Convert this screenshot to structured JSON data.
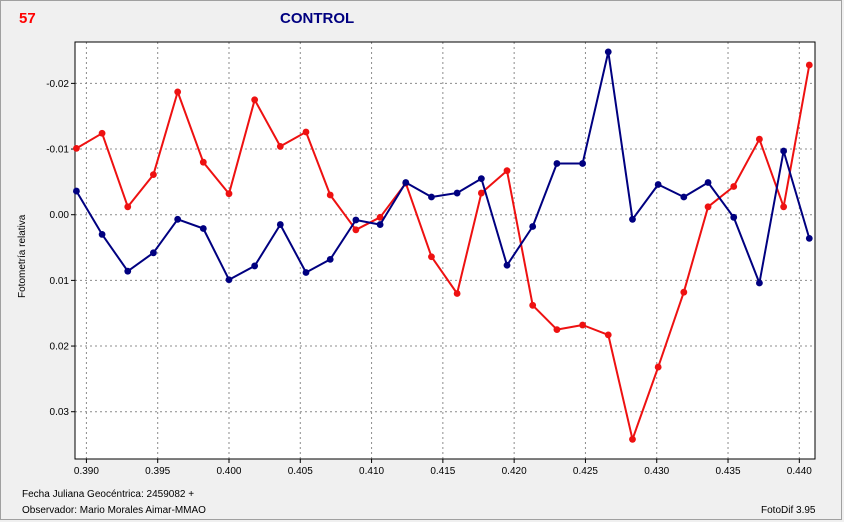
{
  "header": {
    "number": "57",
    "title": "CONTROL"
  },
  "footer": {
    "line1": "Fecha Juliana Geocéntrica: 2459082 +",
    "line2": "Observador: Mario Morales Aimar-MMAO",
    "software": "FotoDif 3.95"
  },
  "colors": {
    "series_red": "#ee1111",
    "series_blue": "#000080",
    "number": "#ff0000",
    "title": "#000080"
  },
  "chart_data": {
    "type": "line",
    "title": "CONTROL",
    "xlabel": "",
    "ylabel": "Fotometría relativa",
    "xlim": [
      0.3892,
      0.4411
    ],
    "ylim": [
      0.0372,
      -0.0263
    ],
    "y_inverted": true,
    "grid": true,
    "x_ticks": [
      0.39,
      0.395,
      0.4,
      0.405,
      0.41,
      0.415,
      0.42,
      0.425,
      0.43,
      0.435,
      0.44
    ],
    "x_tick_labels": [
      "0.390",
      "0.395",
      "0.400",
      "0.405",
      "0.410",
      "0.415",
      "0.420",
      "0.425",
      "0.430",
      "0.435",
      "0.440"
    ],
    "y_ticks": [
      -0.02,
      -0.01,
      0.0,
      0.01,
      0.02,
      0.03
    ],
    "y_tick_labels": [
      "-0.02",
      "-0.01",
      "0.00",
      "0.01",
      "0.02",
      "0.03"
    ],
    "x": [
      0.3893,
      0.3911,
      0.3929,
      0.3947,
      0.3964,
      0.3982,
      0.4,
      0.4018,
      0.4036,
      0.4054,
      0.4071,
      0.4089,
      0.4106,
      0.4124,
      0.4142,
      0.416,
      0.4177,
      0.4195,
      0.4213,
      0.423,
      0.4248,
      0.4266,
      0.4283,
      0.4301,
      0.4319,
      0.4336,
      0.4354,
      0.4372,
      0.4389,
      0.4407
    ],
    "series": [
      {
        "color": "#ee1111",
        "values": [
          -0.0101,
          -0.0124,
          -0.0012,
          -0.0061,
          -0.0187,
          -0.008,
          -0.0032,
          -0.0175,
          -0.0104,
          -0.0126,
          -0.003,
          0.0023,
          0.0004,
          -0.0048,
          0.0064,
          0.012,
          -0.0033,
          -0.0067,
          0.0138,
          0.0175,
          0.0168,
          0.0183,
          0.0342,
          0.0232,
          0.0118,
          -0.0012,
          -0.0043,
          -0.0115,
          -0.0012,
          -0.0228
        ]
      },
      {
        "color": "#000080",
        "values": [
          -0.0036,
          0.003,
          0.0086,
          0.0058,
          0.0007,
          0.0021,
          0.0099,
          0.0078,
          0.0015,
          0.0088,
          0.0068,
          0.0008,
          0.0015,
          -0.0049,
          -0.0027,
          -0.0033,
          -0.0055,
          0.0077,
          0.0018,
          -0.0078,
          -0.0078,
          -0.0248,
          0.0007,
          -0.0046,
          -0.0027,
          -0.0049,
          0.0004,
          0.0104,
          -0.0097,
          0.0036
        ]
      }
    ]
  }
}
